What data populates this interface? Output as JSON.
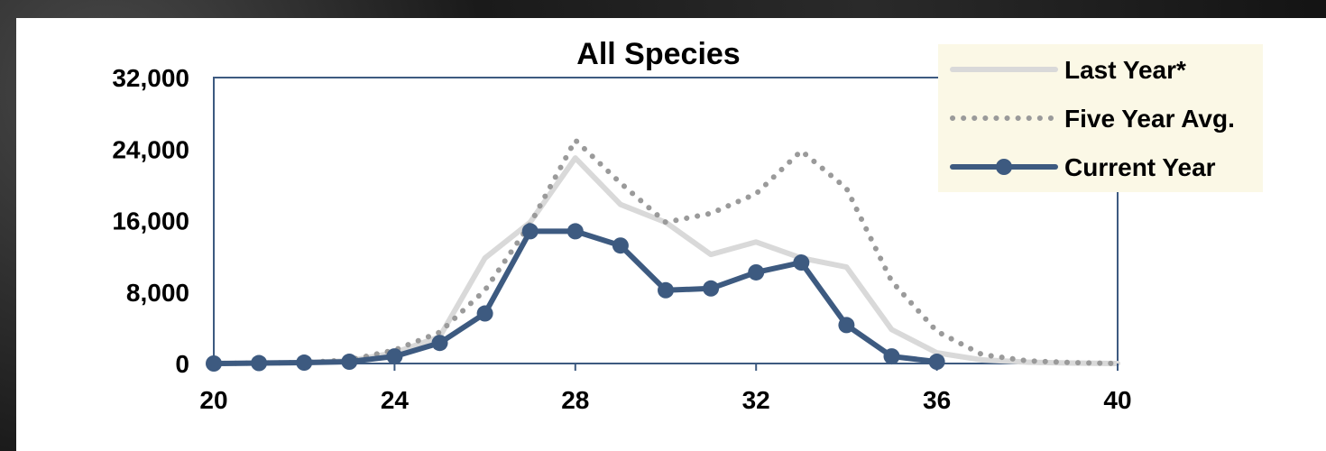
{
  "chart_data": {
    "type": "line",
    "title": "All Species",
    "xlabel": "",
    "ylabel": "",
    "xlim": [
      20,
      40
    ],
    "ylim": [
      0,
      32000
    ],
    "x_ticks": [
      "20",
      "24",
      "28",
      "32",
      "36",
      "40"
    ],
    "y_ticks": [
      "32,000",
      "24,000",
      "16,000",
      "8,000",
      "0"
    ],
    "x_tick_values": [
      20,
      24,
      28,
      32,
      36,
      40
    ],
    "y_tick_values": [
      32000,
      24000,
      16000,
      8000,
      0
    ],
    "grid": false,
    "legend_placement": "top-right",
    "series": [
      {
        "name": "Last Year*",
        "style": "solid-light",
        "color": "#d9d9d9",
        "x": [
          20,
          21,
          22,
          23,
          24,
          25,
          26,
          27,
          28,
          29,
          30,
          31,
          32,
          33,
          34,
          35,
          36,
          37,
          38,
          39,
          40
        ],
        "values": [
          0,
          50,
          100,
          300,
          1200,
          3000,
          11800,
          15800,
          23000,
          17800,
          15800,
          12200,
          13600,
          11800,
          10800,
          3800,
          1200,
          400,
          150,
          50,
          0
        ]
      },
      {
        "name": "Five Year Avg.",
        "style": "dotted",
        "color": "#9a9a9a",
        "x": [
          20,
          21,
          22,
          23,
          24,
          25,
          26,
          27,
          28,
          29,
          30,
          31,
          32,
          33,
          34,
          35,
          36,
          37,
          38,
          39,
          40
        ],
        "values": [
          0,
          50,
          100,
          400,
          1500,
          3500,
          8200,
          15600,
          25000,
          20200,
          15800,
          16800,
          19000,
          23800,
          19600,
          9200,
          3600,
          1000,
          300,
          100,
          0
        ]
      },
      {
        "name": "Current Year",
        "style": "solid-marker",
        "color": "#3d5a80",
        "x": [
          20,
          21,
          22,
          23,
          24,
          25,
          26,
          27,
          28,
          29,
          30,
          31,
          32,
          33,
          34,
          35,
          36
        ],
        "values": [
          0,
          50,
          100,
          200,
          800,
          2300,
          5600,
          14800,
          14800,
          13200,
          8200,
          8400,
          10200,
          11300,
          4300,
          800,
          200
        ]
      }
    ]
  }
}
